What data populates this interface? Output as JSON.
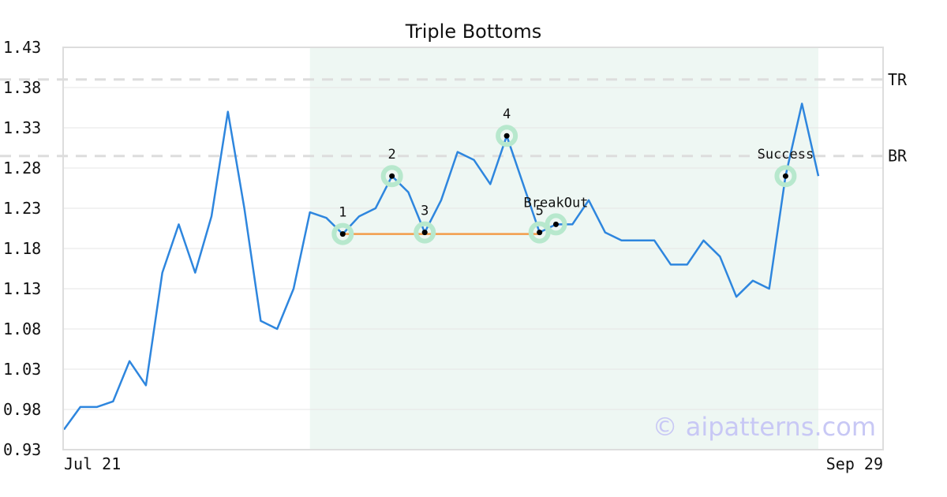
{
  "chart_data": {
    "type": "line",
    "title": "Triple Bottoms",
    "x_start_label": "Jul 21",
    "x_end_label": "Sep 29",
    "ylim": [
      0.93,
      1.43
    ],
    "y_ticks": [
      "1.43",
      "1.38",
      "1.33",
      "1.28",
      "1.23",
      "1.18",
      "1.13",
      "1.08",
      "1.03",
      "0.98",
      "0.93"
    ],
    "y_tick_values": [
      1.43,
      1.38,
      1.33,
      1.28,
      1.23,
      1.18,
      1.13,
      1.08,
      1.03,
      0.98,
      0.93
    ],
    "grid": true,
    "series": [
      {
        "color": "#2e86de",
        "values": [
          0.955,
          0.983,
          0.983,
          0.99,
          1.04,
          1.01,
          1.15,
          1.21,
          1.15,
          1.22,
          1.35,
          1.23,
          1.09,
          1.08,
          1.13,
          1.225,
          1.218,
          1.198,
          1.22,
          1.23,
          1.27,
          1.25,
          1.2,
          1.24,
          1.3,
          1.29,
          1.26,
          1.32,
          1.26,
          1.2,
          1.21,
          1.21,
          1.24,
          1.2,
          1.19,
          1.19,
          1.19,
          1.16,
          1.16,
          1.19,
          1.17,
          1.12,
          1.14,
          1.13,
          1.27,
          1.36,
          1.27
        ]
      }
    ],
    "pattern_shading": {
      "from_index": 15,
      "to_index": 46,
      "color": "#eef7f3"
    },
    "reference_lines": [
      {
        "label": "TR",
        "value": 1.39
      },
      {
        "label": "BR",
        "value": 1.295
      }
    ],
    "support_line": {
      "from_index": 17,
      "to_index": 29,
      "value": 1.198,
      "color": "#f39c4a"
    },
    "annotations": [
      {
        "label": "1",
        "index": 17,
        "value": 1.198
      },
      {
        "label": "2",
        "index": 20,
        "value": 1.27
      },
      {
        "label": "3",
        "index": 22,
        "value": 1.2
      },
      {
        "label": "4",
        "index": 27,
        "value": 1.32
      },
      {
        "label": "5",
        "index": 29,
        "value": 1.2
      },
      {
        "label": "BreakOut",
        "index": 30,
        "value": 1.21
      },
      {
        "label": "Success",
        "index": 44,
        "value": 1.27
      }
    ]
  },
  "watermark": "© aipatterns.com"
}
